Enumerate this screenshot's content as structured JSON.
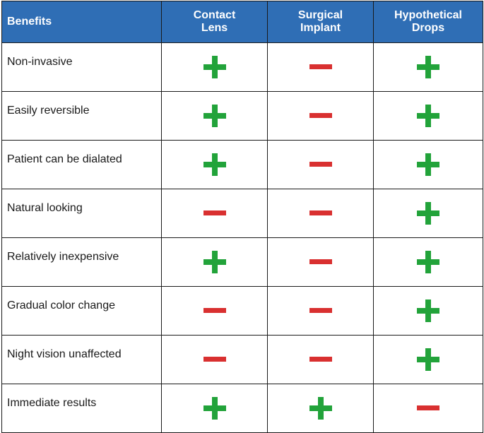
{
  "table": {
    "headers": {
      "benefits": "Benefits",
      "contact_lens": [
        "Contact",
        "Lens"
      ],
      "surgical_implant": [
        "Surgical",
        "Implant"
      ],
      "hypothetical_drops": [
        "Hypothetical",
        "Drops"
      ]
    },
    "rows": [
      {
        "benefit": "Non-invasive",
        "contact_lens": "plus",
        "surgical_implant": "minus",
        "hypothetical_drops": "plus"
      },
      {
        "benefit": "Easily reversible",
        "contact_lens": "plus",
        "surgical_implant": "minus",
        "hypothetical_drops": "plus"
      },
      {
        "benefit": "Patient can be dialated",
        "contact_lens": "plus",
        "surgical_implant": "minus",
        "hypothetical_drops": "plus"
      },
      {
        "benefit": "Natural looking",
        "contact_lens": "minus",
        "surgical_implant": "minus",
        "hypothetical_drops": "plus"
      },
      {
        "benefit": "Relatively inexpensive",
        "contact_lens": "plus",
        "surgical_implant": "minus",
        "hypothetical_drops": "plus"
      },
      {
        "benefit": "Gradual color change",
        "contact_lens": "minus",
        "surgical_implant": "minus",
        "hypothetical_drops": "plus"
      },
      {
        "benefit": "Night vision unaffected",
        "contact_lens": "minus",
        "surgical_implant": "minus",
        "hypothetical_drops": "plus"
      },
      {
        "benefit": "Immediate results",
        "contact_lens": "plus",
        "surgical_implant": "plus",
        "hypothetical_drops": "minus"
      }
    ]
  },
  "colors": {
    "header_background": "#2f6eb5",
    "plus": "#22a33a",
    "minus": "#d93030"
  },
  "icons": {
    "plus": "plus-icon",
    "minus": "minus-icon"
  }
}
